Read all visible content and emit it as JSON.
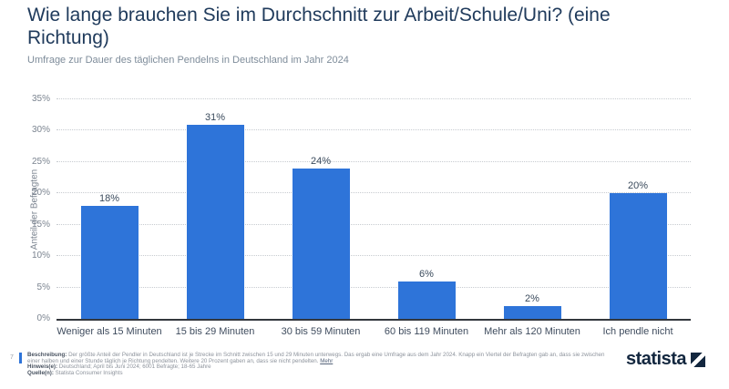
{
  "header": {
    "title": "Wie lange brauchen Sie im Durchschnitt zur Arbeit/Schule/Uni? (eine Richtung)",
    "subtitle": "Umfrage zur Dauer des täglichen Pendelns in Deutschland im Jahr 2024"
  },
  "chart_data": {
    "type": "bar",
    "categories": [
      "Weniger als 15 Minuten",
      "15 bis 29 Minuten",
      "30 bis 59 Minuten",
      "60 bis 119 Minuten",
      "Mehr als 120 Minuten",
      "Ich pendle nicht"
    ],
    "values": [
      18,
      31,
      24,
      6,
      2,
      20
    ],
    "value_labels": [
      "18%",
      "31%",
      "24%",
      "6%",
      "2%",
      "20%"
    ],
    "title": "Wie lange brauchen Sie im Durchschnitt zur Arbeit/Schule/Uni? (eine Richtung)",
    "xlabel": "",
    "ylabel": "Anteil der Befragten",
    "ylim": [
      0,
      35
    ],
    "yticks": [
      "0%",
      "5%",
      "10%",
      "15%",
      "20%",
      "25%",
      "30%",
      "35%"
    ],
    "grid": "horizontal-dotted",
    "legend": "none",
    "bar_color": "#2e74d9"
  },
  "footer": {
    "page_number": "7",
    "description_label": "Beschreibung:",
    "description": "Der größte Anteil der Pendler in Deutschland ist je Strecke im Schnitt zwischen 15 und 29 Minuten unterwegs. Das ergab eine Umfrage aus dem Jahr 2024. Knapp ein Viertel der Befragten gab an, dass sie zwischen einer halben und einer Stunde täglich je Richtung pendelten. Weitere 20 Prozent gaben an, dass sie nicht pendelten.",
    "more_link": "Mehr",
    "note_label": "Hinweis(e):",
    "note": "Deutschland; April bis Juni 2024; 6001 Befragte; 18-65 Jahre",
    "source_label": "Quelle(n):",
    "source": "Statista Consumer Insights",
    "logo_text": "statista"
  },
  "colors": {
    "bar_blue": "#2e74d9",
    "title_navy": "#203b5c",
    "logo_navy": "#13273f",
    "accent_bar_blue": "#2e74d9"
  }
}
